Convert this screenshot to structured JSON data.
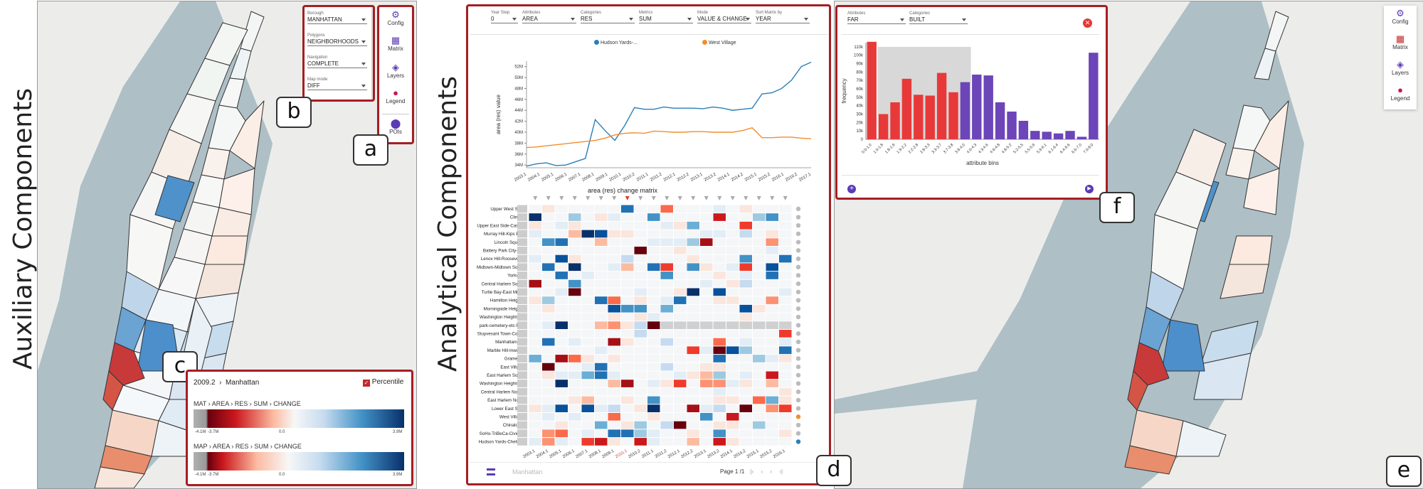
{
  "labels": {
    "auxiliary": "Auxiliary Components",
    "analytical": "Analytical Components"
  },
  "callouts": {
    "a": "a",
    "b": "b",
    "c": "c",
    "d": "d",
    "e": "e",
    "f": "f"
  },
  "toolbar": {
    "config": "Config",
    "matrix": "Matrix",
    "layers": "Layers",
    "legend": "Legend",
    "pois": "POIs"
  },
  "settings": {
    "borough": {
      "label": "Borough",
      "value": "MANHATTAN"
    },
    "polygons": {
      "label": "Polygons",
      "value": "NEIGHBORHOODS"
    },
    "navigation": {
      "label": "Navigation",
      "value": "COMPLETE"
    },
    "map_mode": {
      "label": "Map mode",
      "value": "DIFF"
    }
  },
  "legend_panel": {
    "breadcrumb_time": "2009.2",
    "breadcrumb_place": "Manhattan",
    "percentile_label": "Percentile",
    "row1": [
      "MAT",
      "AREA",
      "RES",
      "SUM",
      "CHANGE"
    ],
    "row2": [
      "MAP",
      "AREA",
      "RES",
      "SUM",
      "CHANGE"
    ],
    "row1_ticks": [
      "-4.1M",
      "-3.7M",
      "0.0",
      "3.9M"
    ],
    "row2_ticks": [
      "-4.1M",
      "-3.7M",
      "0.0",
      "3.9M"
    ]
  },
  "analysis": {
    "filters": [
      {
        "label": "Year Step",
        "value": "0"
      },
      {
        "label": "Attributes",
        "value": "AREA"
      },
      {
        "label": "Categories",
        "value": "RES"
      },
      {
        "label": "Metrics",
        "value": "SUM"
      },
      {
        "label": "Mode",
        "value": "VALUE & CHANGE"
      },
      {
        "label": "Sort Matrix by",
        "value": "YEAR"
      }
    ],
    "legend_series": [
      "Hudson Yards-...",
      "West Village"
    ],
    "ylabel": "area (res) value",
    "matrix_title": "area (res) change matrix",
    "footer_title": "Manhattan",
    "page_label": "Page",
    "page_current": "1",
    "page_total": "/1",
    "rows": [
      "Upper West Side",
      "Clinton",
      "Upper East Side-Carn...",
      "Murray Hill-Kips Bay",
      "Lincoln Square",
      "Battery Park City-L...",
      "Lenox Hill-Roosevel...",
      "Midtown-Midtown South",
      "Yorkville",
      "Central Harlem South",
      "Turtle Bay-East Mid...",
      "Hamilton Heights",
      "Morningside Heights",
      "Washington Heights ...",
      "park-cemetery-etc-M...",
      "Stuyvesant Town-Coo...",
      "Manhattanville",
      "Marble Hill-Inwood",
      "Gramercy",
      "East Village",
      "East Harlem South",
      "Washington Heights ...",
      "Central Harlem Nort...",
      "East Harlem North",
      "Lower East Side",
      "West Village",
      "Chinatown",
      "SoHo-TriBeCa-Civic ...",
      "Hudson Yards-Chelsea"
    ]
  },
  "chart_data": [
    {
      "type": "line",
      "title": "",
      "xlabel": "",
      "ylabel": "area (res) value",
      "x": [
        "2003.1",
        "2003.2",
        "2004.1",
        "2004.2",
        "2005.1",
        "2005.2",
        "2006.1",
        "2006.2",
        "2007.1",
        "2007.2",
        "2008.1",
        "2008.2",
        "2009.1",
        "2009.2",
        "2010.1",
        "2010.2",
        "2011.1",
        "2011.2",
        "2012.1",
        "2012.2",
        "2013.1",
        "2013.2",
        "2014.1",
        "2014.2",
        "2015.1",
        "2015.2",
        "2016.1",
        "2016.2",
        "2017.1",
        "2017.2"
      ],
      "x_ticks": [
        "2003.1",
        "2004.1",
        "2005.1",
        "2006.1",
        "2007.1",
        "2008.1",
        "2009.1",
        "2010.1",
        "2010.2",
        "2011.1",
        "2011.2",
        "2012.1",
        "2012.2",
        "2013.1",
        "2013.2",
        "2014.1",
        "2014.2",
        "2015.1",
        "2015.2",
        "2016.1",
        "2016.2",
        "2017.1"
      ],
      "y_ticks": [
        "34M",
        "36M",
        "38M",
        "40M",
        "42M",
        "44M",
        "46M",
        "48M",
        "50M",
        "52M"
      ],
      "ylim": [
        33.5,
        53
      ],
      "series": [
        {
          "name": "Hudson Yards-...",
          "color": "#2a7fb8",
          "values": [
            33.8,
            34.2,
            34.4,
            33.9,
            34.0,
            34.6,
            35.2,
            42.3,
            40.3,
            38.5,
            41.2,
            44.5,
            44.2,
            44.2,
            44.6,
            44.4,
            44.4,
            44.4,
            44.3,
            44.6,
            44.4,
            44.0,
            44.2,
            44.4,
            47.0,
            47.2,
            48.0,
            49.5,
            52.0,
            52.8
          ]
        },
        {
          "name": "West Village",
          "color": "#f28e2b",
          "values": [
            37.2,
            37.3,
            37.5,
            37.7,
            37.9,
            38.1,
            38.3,
            38.5,
            38.9,
            39.5,
            39.8,
            39.9,
            39.8,
            40.2,
            40.1,
            40.0,
            40.0,
            40.1,
            40.1,
            40.0,
            40.0,
            40.0,
            40.3,
            40.8,
            39.0,
            39.0,
            39.1,
            39.1,
            38.9,
            38.8
          ]
        }
      ]
    },
    {
      "type": "bar",
      "title": "",
      "xlabel": "attribute bins",
      "ylabel": "frequency",
      "y_ticks": [
        "0",
        "10k",
        "20k",
        "30k",
        "40k",
        "50k",
        "60k",
        "70k",
        "80k",
        "90k",
        "100k",
        "110k"
      ],
      "ylim": [
        0,
        115
      ],
      "categories": [
        "0.0-1.0",
        "1.0-1.8",
        "1.8-1.9",
        "1.9-2.2",
        "2.2-2.8",
        "2.8-3.3",
        "3.3-3.7",
        "3.7-3.8",
        "3.8-4.0",
        "4.0-4.3",
        "4.3-4.6",
        "4.6-4.8",
        "4.8-5.2",
        "5.2-5.5",
        "5.5-5.9",
        "5.9-6.1",
        "6.1-6.4",
        "6.4-6.6",
        "6.6-7.0",
        "7.0-8.0"
      ],
      "values": [
        116,
        30,
        44,
        72,
        53,
        52,
        79,
        56,
        68,
        77,
        76,
        44,
        33,
        22,
        10,
        9,
        7,
        10,
        3,
        103
      ],
      "colors": [
        "#e8393a",
        "#e8393a",
        "#e8393a",
        "#e8393a",
        "#e8393a",
        "#e8393a",
        "#e8393a",
        "#e8393a",
        "#6c45b8",
        "#6c45b8",
        "#6c45b8",
        "#6c45b8",
        "#6c45b8",
        "#6c45b8",
        "#6c45b8",
        "#6c45b8",
        "#6c45b8",
        "#6c45b8",
        "#6c45b8",
        "#6c45b8"
      ],
      "highlight_range": [
        1,
        9
      ]
    }
  ],
  "histogram_panel": {
    "attributes": {
      "label": "Attributes",
      "value": "FAR"
    },
    "categories": {
      "label": "Categories",
      "value": "BUILT"
    }
  },
  "colors": {
    "accent": "#a51e23",
    "purple": "#5b3bb5",
    "water": "#aebfc6",
    "land": "#f1f2f0"
  }
}
